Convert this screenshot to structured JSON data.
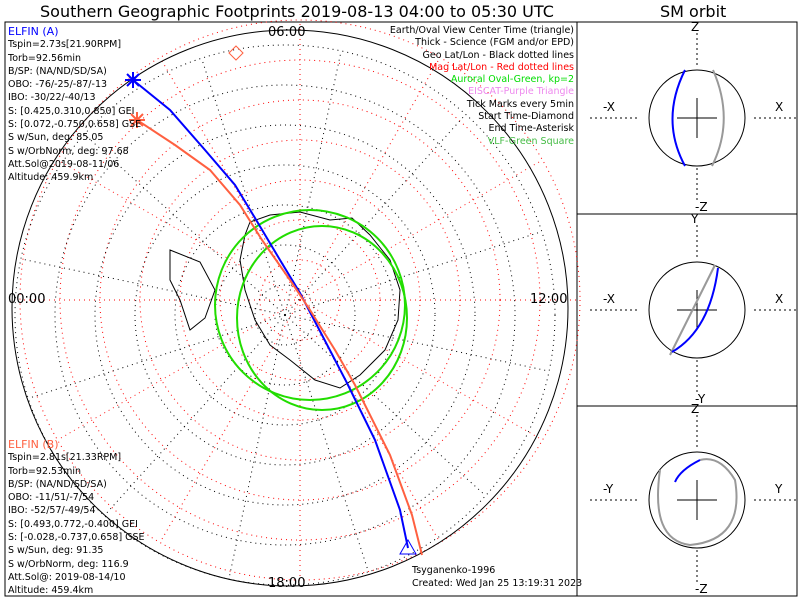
{
  "title": "Southern Geographic Footprints 2019-08-13 04:00 to 05:30 UTC",
  "sm_title": "SM orbit",
  "mlt_labels": {
    "top": "06:00",
    "bottom": "18:00",
    "left": "00:00",
    "right": "12:00"
  },
  "elfin_a": {
    "name": "ELFIN (A)",
    "color": "#0000ff",
    "lines": [
      "Tspin=2.73s[21.90RPM]",
      "Torb=92.56min",
      "B/SP: (NA/ND/SD/SA)",
      "OBO: -76/-25/-87/-13",
      "IBO: -30/22/-40/13",
      "S: [0.425,0.310,0.850] GEI",
      "S: [0.072,-0.750,0.658] GSE",
      "S w/Sun, deg: 85.05",
      "S w/OrbNorm, deg: 97.68",
      "Att.Sol@2019-08-11/06",
      "Altitude: 459.9km"
    ]
  },
  "elfin_b": {
    "name": "ELFIN (B)",
    "color": "#ff6040",
    "lines": [
      "Tspin=2.81s[21.33RPM]",
      "Torb=92.53min",
      "B/SP: (NA/ND/SD/SA)",
      "OBO: -11/51/-7/54",
      "IBO: -52/57/-49/54",
      "S: [0.493,0.772,-0.400] GEI",
      "S: [-0.028,-0.737,0.658] GSE",
      "S w/Sun, deg: 91.35",
      "S w/OrbNorm, deg: 116.9",
      "Att.Sol@: 2019-08-14/10",
      "Altitude: 459.4km"
    ]
  },
  "legend": [
    {
      "text": "Earth/Oval View Center Time (triangle)",
      "color": "#000000"
    },
    {
      "text": "Thick - Science (FGM and/or EPD)",
      "color": "#000000"
    },
    {
      "text": "Geo Lat/Lon - Black dotted lines",
      "color": "#000000"
    },
    {
      "text": "Mag Lat/Lon - Red dotted lines",
      "color": "#ff0000"
    },
    {
      "text": "Auroral Oval-Green, kp=2",
      "color": "#00dd00"
    },
    {
      "text": "EISCAT-Purple Triangle",
      "color": "#ee88ee"
    },
    {
      "text": "Tick Marks every 5min",
      "color": "#000000"
    },
    {
      "text": "Start Time-Diamond",
      "color": "#000000"
    },
    {
      "text": "End Time-Asterisk",
      "color": "#000000"
    },
    {
      "text": "VLF-Green Square",
      "color": "#44bb44"
    }
  ],
  "credit": "Tsyganenko-1996",
  "created": "Created: Wed Jan 25 13:19:31 2023",
  "sm_panels": [
    {
      "top": "Z",
      "bottom": "-Z",
      "left": "-X",
      "right": "X"
    },
    {
      "top": "Y",
      "bottom": "-Y",
      "left": "-X",
      "right": "X"
    },
    {
      "top": "Z",
      "bottom": "-Z",
      "left": "-Y",
      "right": "Y"
    }
  ]
}
